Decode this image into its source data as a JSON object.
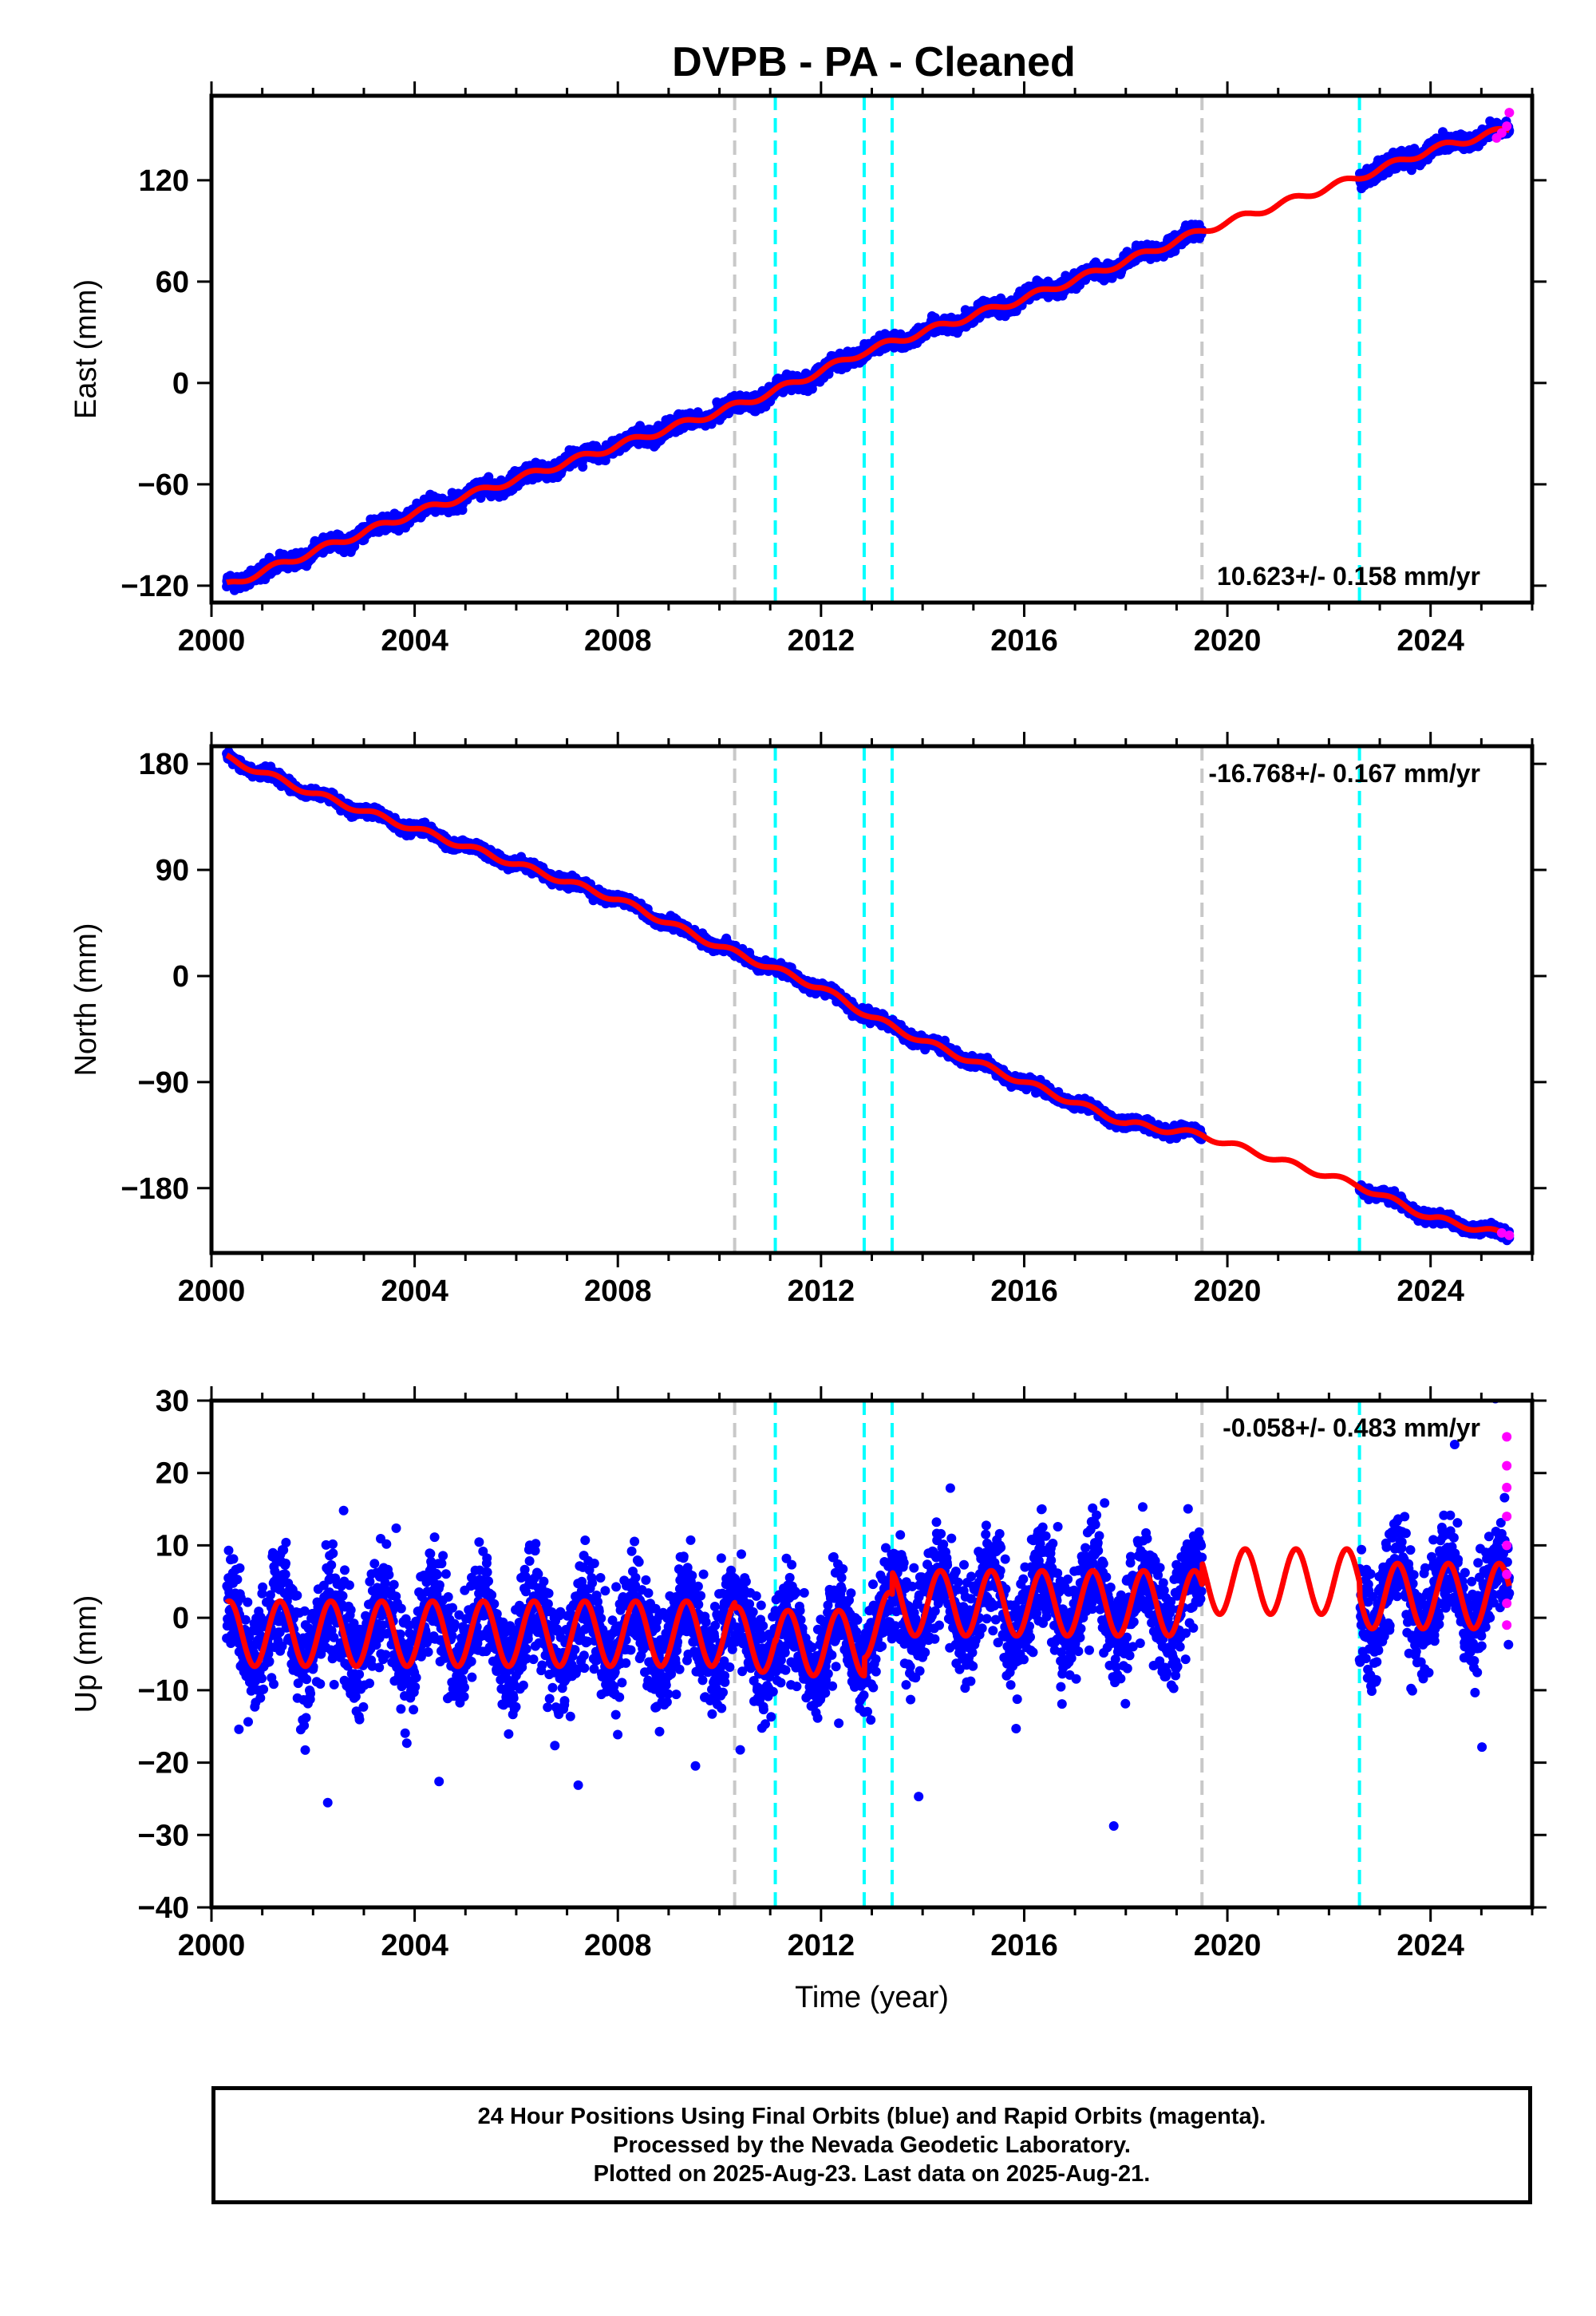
{
  "title": "DVPB  - PA - Cleaned",
  "colors": {
    "final_orbits": "#0000ff",
    "rapid_orbits": "#ff00ff",
    "model": "#ff0000",
    "equipment_change": "#00ffff",
    "other_event": "#c8c8c8"
  },
  "footer": {
    "line1": "24 Hour Positions Using Final Orbits (blue) and Rapid Orbits (magenta).",
    "line2": "Processed by the Nevada Geodetic Laboratory.",
    "line3": "Plotted on 2025-Aug-23. Last data on 2025-Aug-21."
  },
  "chart_data": [
    {
      "type": "scatter",
      "panel": "east",
      "ylabel": "East (mm)",
      "xlabel": "",
      "xlim": [
        2000,
        2026
      ],
      "ylim": [
        -130,
        170
      ],
      "xticks": [
        "2000",
        "2004",
        "2008",
        "2012",
        "2016",
        "2020",
        "2024"
      ],
      "yticks": [
        "−120",
        "−60",
        "0",
        "60",
        "120"
      ],
      "rate_text": "10.623+/- 0.158 mm/yr",
      "rate_position": "bottom-right",
      "series": [
        {
          "role": "final",
          "x_start": 2000.3,
          "x_end": 2025.55,
          "gap": [
            2019.5,
            2022.6
          ],
          "points": [
            [
              2000.3,
              -120
            ],
            [
              2002,
              -100
            ],
            [
              2004,
              -77
            ],
            [
              2006,
              -57
            ],
            [
              2008,
              -37
            ],
            [
              2010,
              -17
            ],
            [
              2011,
              -6
            ],
            [
              2012,
              7
            ],
            [
              2012.8,
              18
            ],
            [
              2014,
              30
            ],
            [
              2016,
              50
            ],
            [
              2018,
              72
            ],
            [
              2019.5,
              90
            ],
            [
              2022.6,
              122
            ],
            [
              2024,
              138
            ],
            [
              2025.5,
              150
            ]
          ]
        },
        {
          "role": "rapid",
          "points": [
            [
              2025.3,
              145
            ],
            [
              2025.4,
              148
            ],
            [
              2025.5,
              152
            ],
            [
              2025.55,
              160
            ]
          ]
        },
        {
          "role": "model",
          "annual_amplitude": 2
        }
      ],
      "events": {
        "other": [
          2010.3,
          2019.5
        ],
        "equipment": [
          2011.1,
          2012.85,
          2013.4,
          2022.6
        ]
      }
    },
    {
      "type": "scatter",
      "panel": "north",
      "ylabel": "North (mm)",
      "xlabel": "",
      "xlim": [
        2000,
        2026
      ],
      "ylim": [
        -235,
        195
      ],
      "xticks": [
        "2000",
        "2004",
        "2008",
        "2012",
        "2016",
        "2020",
        "2024"
      ],
      "yticks": [
        "−180",
        "−90",
        "0",
        "90",
        "180"
      ],
      "rate_text": "-16.768+/- 0.167 mm/yr",
      "rate_position": "top-right",
      "series": [
        {
          "role": "final",
          "x_start": 2000.3,
          "x_end": 2025.55,
          "gap": [
            2019.5,
            2022.6
          ],
          "points": [
            [
              2000.3,
              185
            ],
            [
              2002,
              155
            ],
            [
              2004,
              125
            ],
            [
              2006,
              95
            ],
            [
              2008,
              65
            ],
            [
              2010,
              25
            ],
            [
              2012,
              -10
            ],
            [
              2013,
              -35
            ],
            [
              2014,
              -55
            ],
            [
              2016,
              -90
            ],
            [
              2018,
              -125
            ],
            [
              2019.5,
              -135
            ],
            [
              2022.6,
              -178
            ],
            [
              2024,
              -205
            ],
            [
              2025.5,
              -220
            ]
          ]
        },
        {
          "role": "rapid",
          "points": [
            [
              2025.4,
              -218
            ],
            [
              2025.55,
              -220
            ]
          ]
        },
        {
          "role": "model",
          "annual_amplitude": 2.5
        }
      ],
      "events": {
        "other": [
          2010.3,
          2019.5
        ],
        "equipment": [
          2011.1,
          2012.85,
          2013.4,
          2022.6
        ]
      }
    },
    {
      "type": "scatter",
      "panel": "up",
      "ylabel": "Up (mm)",
      "xlabel": "Time (year)",
      "xlim": [
        2000,
        2026
      ],
      "ylim": [
        -40,
        30
      ],
      "xticks": [
        "2000",
        "2004",
        "2008",
        "2012",
        "2016",
        "2020",
        "2024"
      ],
      "yticks": [
        "−40",
        "−30",
        "−20",
        "−10",
        "0",
        "10",
        "20",
        "30"
      ],
      "rate_text": "-0.058+/- 0.483 mm/yr",
      "rate_position": "top-right",
      "series": [
        {
          "role": "final",
          "x_start": 2000.3,
          "x_end": 2025.55,
          "gap": [
            2019.5,
            2022.6
          ],
          "scatter_sd": 6
        },
        {
          "role": "rapid",
          "points": [
            [
              2025.5,
              25
            ],
            [
              2025.5,
              21
            ],
            [
              2025.5,
              18
            ],
            [
              2025.5,
              14
            ],
            [
              2025.5,
              10
            ],
            [
              2025.5,
              6
            ],
            [
              2025.5,
              2
            ],
            [
              2025.5,
              -1
            ]
          ]
        },
        {
          "role": "model",
          "annual_amplitude": 4.5,
          "offsets": [
            [
              2000.3,
              -2.2
            ],
            [
              2010.3,
              -3
            ],
            [
              2011.1,
              -3.5
            ],
            [
              2012.85,
              -1
            ],
            [
              2013.4,
              2
            ],
            [
              2019.5,
              5
            ],
            [
              2022.6,
              3
            ]
          ]
        }
      ],
      "events": {
        "other": [
          2010.3,
          2019.5
        ],
        "equipment": [
          2011.1,
          2012.85,
          2013.4,
          2022.6
        ]
      }
    }
  ]
}
